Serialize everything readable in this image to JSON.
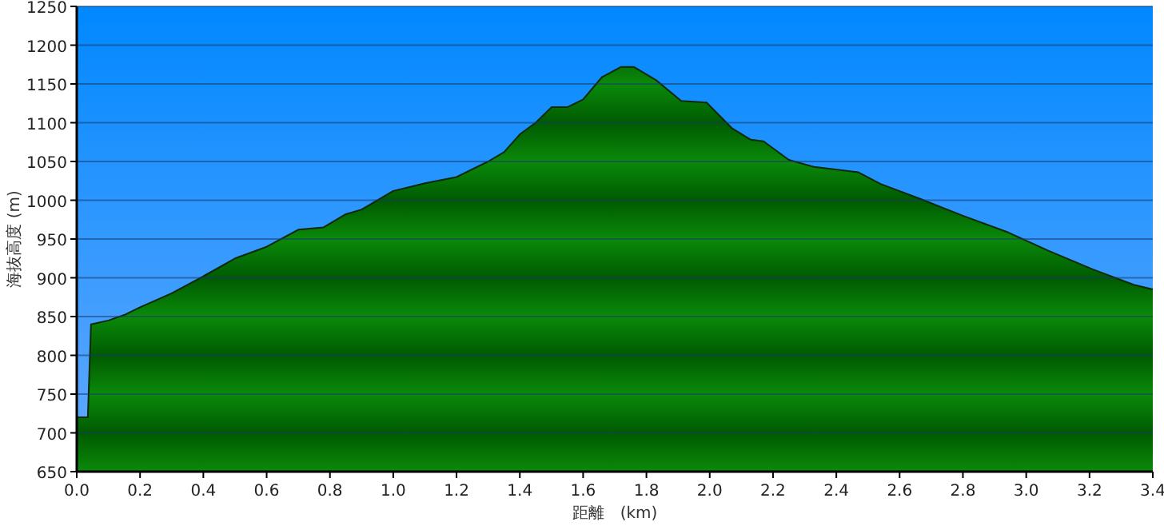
{
  "chart_data": {
    "type": "area",
    "xlabel": "距離　(km)",
    "ylabel": "海抜高度 (m)",
    "color": "#0a8a0a",
    "grid": "y",
    "xlim": [
      0,
      3.4
    ],
    "ylim": [
      650,
      1250
    ],
    "xticks": [
      {
        "value": 0,
        "label": "0.0"
      },
      0.2,
      0.4,
      0.6,
      0.8,
      {
        "value": 1,
        "label": "1.0"
      },
      1.2,
      1.4,
      1.6,
      1.8,
      {
        "value": 2,
        "label": "2.0"
      },
      2.2,
      2.4,
      2.6,
      2.8,
      {
        "value": 3,
        "label": "3.0"
      },
      3.2,
      3.4
    ],
    "yticks": [
      650,
      700,
      750,
      800,
      850,
      900,
      950,
      1000,
      1050,
      1100,
      1150,
      1200,
      1250
    ],
    "x": [
      0,
      0.035,
      0.045,
      0.1,
      0.15,
      0.2,
      0.3,
      0.4,
      0.5,
      0.6,
      0.7,
      0.78,
      0.85,
      0.9,
      1.0,
      1.1,
      1.2,
      1.3,
      1.35,
      1.4,
      1.45,
      1.5,
      1.55,
      1.6,
      1.66,
      1.72,
      1.76,
      1.83,
      1.91,
      1.99,
      2.07,
      2.13,
      2.17,
      2.25,
      2.33,
      2.47,
      2.54,
      2.67,
      2.8,
      2.94,
      3.07,
      3.21,
      3.34,
      3.4
    ],
    "values": [
      720,
      720,
      840,
      845,
      852,
      862,
      880,
      902,
      925,
      940,
      962,
      965,
      982,
      988,
      1012,
      1022,
      1030,
      1050,
      1062,
      1085,
      1100,
      1120,
      1120,
      1130,
      1159,
      1172,
      1172,
      1155,
      1128,
      1126,
      1093,
      1078,
      1076,
      1052,
      1043,
      1036,
      1021,
      1001,
      980,
      959,
      935,
      911,
      891,
      885
    ]
  }
}
